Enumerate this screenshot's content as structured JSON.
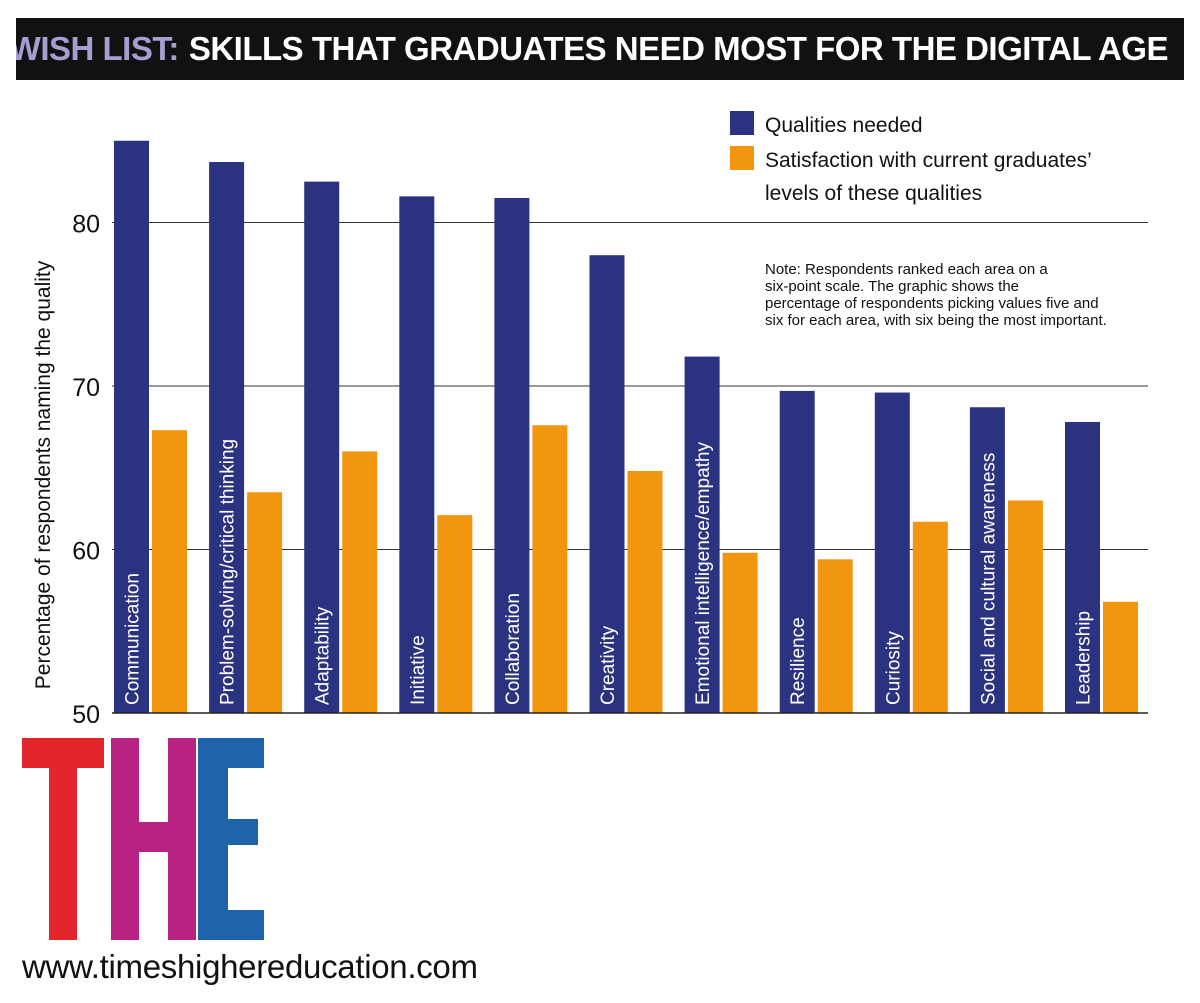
{
  "header": {
    "title_lead": "WISH LIST:",
    "title_rest": "SKILLS THAT GRADUATES NEED MOST FOR THE DIGITAL AGE"
  },
  "chart_data": {
    "type": "bar",
    "ylabel": "Percentage of respondents naming the quality",
    "ylim": [
      50,
      85
    ],
    "yticks": [
      50,
      60,
      70,
      80
    ],
    "grid": true,
    "legend_position": "top-right",
    "categories": [
      "Communication",
      "Problem-solving/critical thinking",
      "Adaptability",
      "Initiative",
      "Collaboration",
      "Creativity",
      "Emotional intelligence/empathy",
      "Resilience",
      "Curiosity",
      "Social and cultural awareness",
      "Leadership"
    ],
    "series": [
      {
        "name": "Qualities needed",
        "color": "#2b3380",
        "values": [
          85.0,
          83.7,
          82.5,
          81.6,
          81.5,
          78.0,
          71.8,
          69.7,
          69.6,
          68.7,
          67.8
        ]
      },
      {
        "name": "Satisfaction with current graduates’ levels of these qualities",
        "color": "#f2950f",
        "values": [
          67.3,
          63.5,
          66.0,
          62.1,
          67.6,
          64.8,
          59.8,
          59.4,
          61.7,
          63.0,
          56.8
        ]
      }
    ],
    "note": "Note: Respondents ranked each area on a six-point scale. The graphic shows the percentage of respondents picking values five and six for each area, with six being the most important."
  },
  "logo": {
    "letters": [
      "T",
      "H",
      "E"
    ],
    "colors": [
      "#e3262b",
      "#b72283",
      "#1f63ad"
    ]
  },
  "footer": {
    "url": "www.timeshighereducation.com"
  }
}
